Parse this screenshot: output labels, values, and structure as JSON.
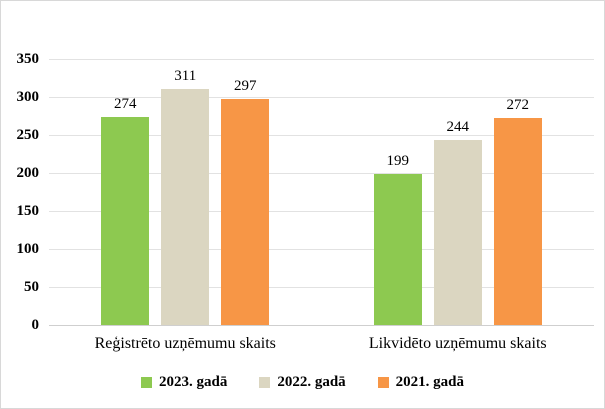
{
  "chart_data": {
    "type": "bar",
    "title": "",
    "categories": [
      "Reģistrēto uzņēmumu skaits",
      "Likvidēto uzņēmumu skaits"
    ],
    "series": [
      {
        "name": "2023. gadā",
        "color": "#8DC950",
        "values": [
          274,
          199
        ]
      },
      {
        "name": "2022. gadā",
        "color": "#DBD6C1",
        "values": [
          311,
          244
        ]
      },
      {
        "name": "2021. gadā",
        "color": "#F79646",
        "values": [
          297,
          272
        ]
      }
    ],
    "ylim": [
      0,
      350
    ],
    "ytick_step": 50,
    "yticks": [
      0,
      50,
      100,
      150,
      200,
      250,
      300,
      350
    ],
    "grid": true,
    "bar_labels": true,
    "legend_position": "bottom",
    "xlabel": "",
    "ylabel": ""
  },
  "colors": {
    "grid": "#E2E2E2",
    "axis": "#CFCFCF",
    "frame_border": "#D8D8D8",
    "text": "#000000",
    "background": "#FFFFFF"
  }
}
